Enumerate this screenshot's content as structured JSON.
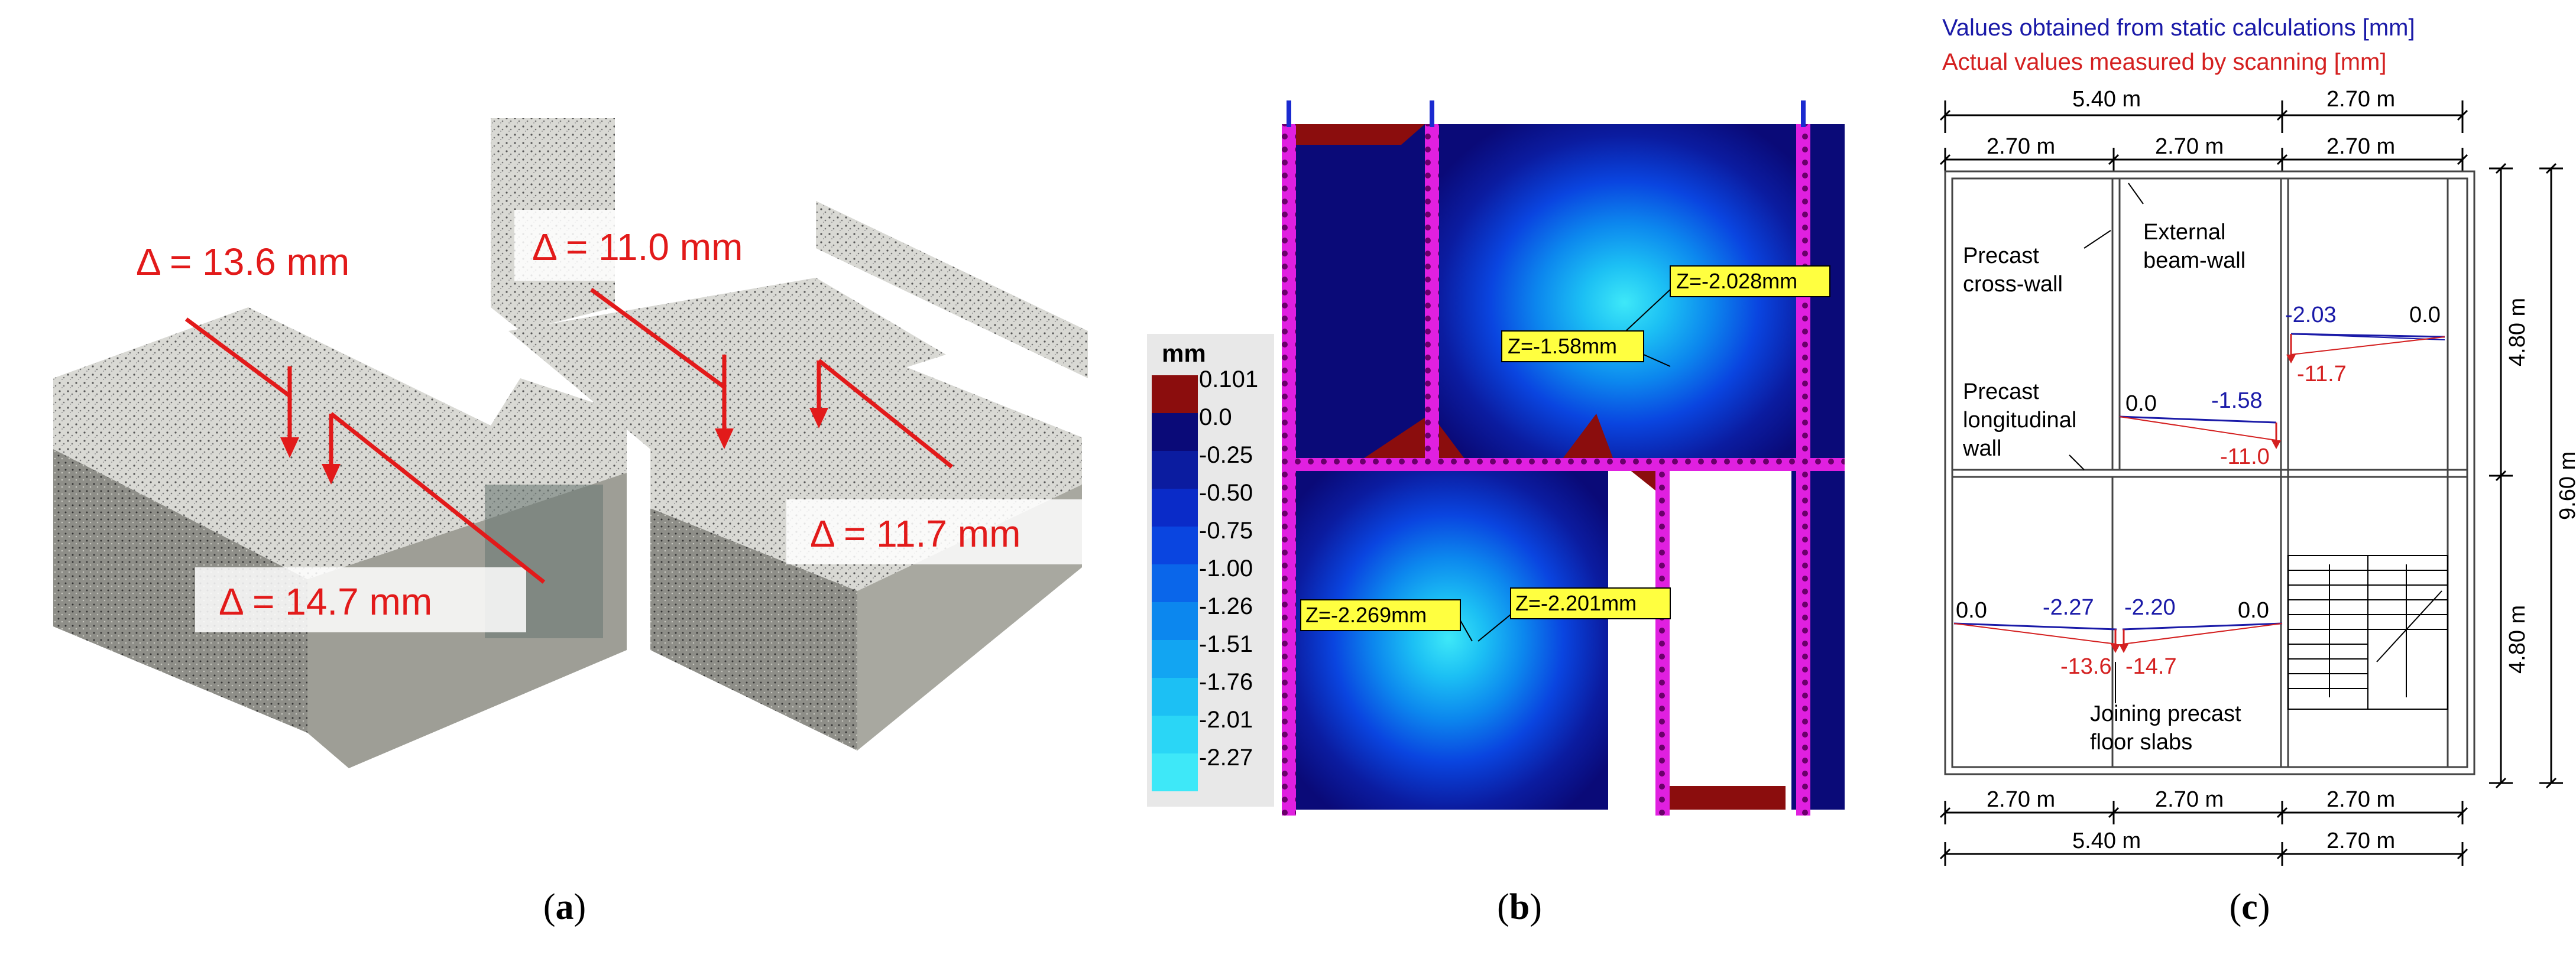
{
  "panel_a": {
    "annotations": [
      "Δ = 13.6 mm",
      "Δ = 11.0 mm",
      "Δ = 14.7 mm",
      "Δ = 11.7 mm"
    ],
    "caption_letter": "a"
  },
  "panel_b": {
    "legend_title": "mm",
    "legend_labels": [
      "0.101",
      "0.0",
      "-0.25",
      "-0.50",
      "-0.75",
      "-1.00",
      "-1.26",
      "-1.51",
      "-1.76",
      "-2.01",
      "-2.27"
    ],
    "legend_colors": [
      "#8b0d0d",
      "#0a0a78",
      "#0b1ca0",
      "#0a2bc8",
      "#0a45e0",
      "#0a66ea",
      "#0c87ee",
      "#12a5f2",
      "#1cc0f4",
      "#2ad6f6",
      "#3ee8f8"
    ],
    "labels": [
      "Z=-2.028mm",
      "Z=-1.58mm",
      "Z=-2.269mm",
      "Z=-2.201mm"
    ],
    "caption_letter": "b"
  },
  "panel_c": {
    "legend_static": "Values obtained from static calculations [mm]",
    "legend_scan": "Actual values measured by scanning [mm]",
    "dims_top_outer": [
      "5.40 m",
      "2.70 m"
    ],
    "dims_top_inner": [
      "2.70 m",
      "2.70 m",
      "2.70 m"
    ],
    "dims_bottom_inner": [
      "2.70 m",
      "2.70 m",
      "2.70 m"
    ],
    "dims_bottom_outer": [
      "5.40 m",
      "2.70 m"
    ],
    "dims_right": [
      "4.80 m",
      "9.60 m",
      "4.80 m"
    ],
    "labels": [
      "Precast cross-wall",
      "External beam-wall",
      "Precast longitudinal wall",
      "Joining precast floor slabs"
    ],
    "static_values": [
      "-2.03",
      "0.0",
      "0.0",
      "-1.58",
      "0.0",
      "-2.27",
      "-2.20",
      "0.0"
    ],
    "scan_values": [
      "-11.7",
      "-11.0",
      "-13.6",
      "-14.7"
    ],
    "static_color": "#1a1aa8",
    "scan_color": "#d42020",
    "caption_letter": "c"
  }
}
